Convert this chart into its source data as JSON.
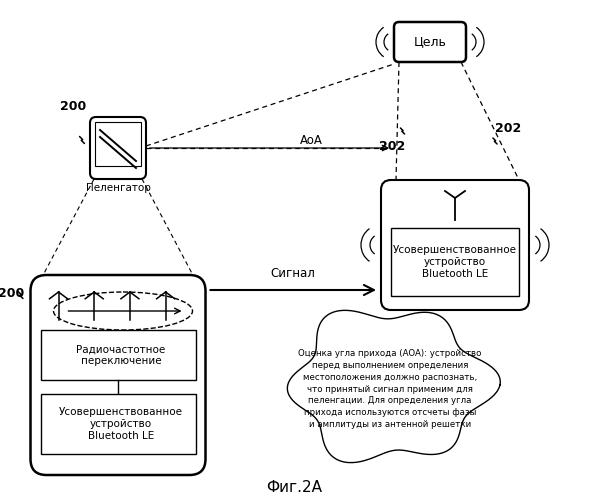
{
  "bg_color": "#ffffff",
  "fig_caption": "Фиг.2A",
  "label_200_top": "200",
  "label_200_left": "200",
  "label_202_left": "202",
  "label_202_right": "202",
  "label_aoa": "AoA",
  "label_signal": "Сигнал",
  "pelengator_label": "Пеленгатор",
  "target_label": "Цель",
  "advanced_top_line1": "Усовершенствованное",
  "advanced_top_line2": "устройство",
  "advanced_top_line3": "Bluetooth LE",
  "radio_switch_line1": "Радиочастотное",
  "radio_switch_line2": "переключение",
  "advanced_bot_line1": "Усовершенствованное",
  "advanced_bot_line2": "устройство",
  "advanced_bot_line3": "Bluetooth LE",
  "cloud_text": "Оценка угла прихода (AOA): устройство\nперед выполнением определения\nместоположения должно распознать,\nчто принятый сигнал применим для\nпеленгации. Для определения угла\nприхода используются отсчеты фазы\nи амплитуды из антенной решетки"
}
